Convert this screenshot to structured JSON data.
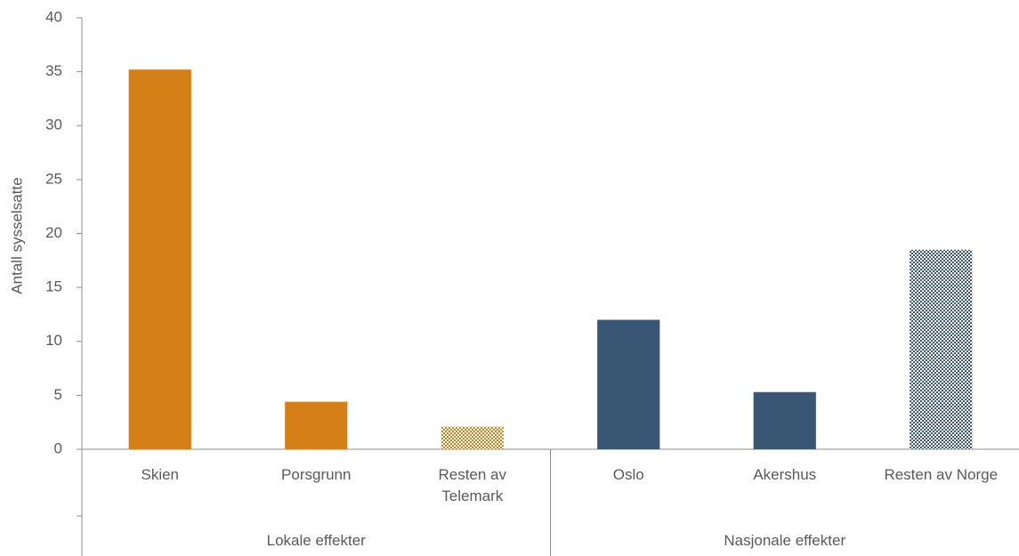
{
  "chart_data": {
    "type": "bar",
    "y_label": "Antall sysselsatte",
    "categories": [
      "Skien",
      "Porsgrunn",
      "Resten av Telemark",
      "Oslo",
      "Akershus",
      "Resten av Norge"
    ],
    "values": [
      35.2,
      4.4,
      2.1,
      12.0,
      5.3,
      18.5
    ],
    "colors": [
      "#d57f17",
      "#d57f17",
      "#d57f17",
      "#3a5675",
      "#3a5675",
      "#3a5675"
    ],
    "hatched": [
      false,
      false,
      true,
      false,
      false,
      true
    ],
    "groups": [
      {
        "name": "Lokale effekter",
        "size": 3
      },
      {
        "name": "Nasjonale effekter",
        "size": 3
      }
    ],
    "ylim": [
      0,
      40
    ],
    "yticks": [
      0,
      5,
      10,
      15,
      20,
      25,
      30,
      35,
      40
    ],
    "grid": false
  }
}
